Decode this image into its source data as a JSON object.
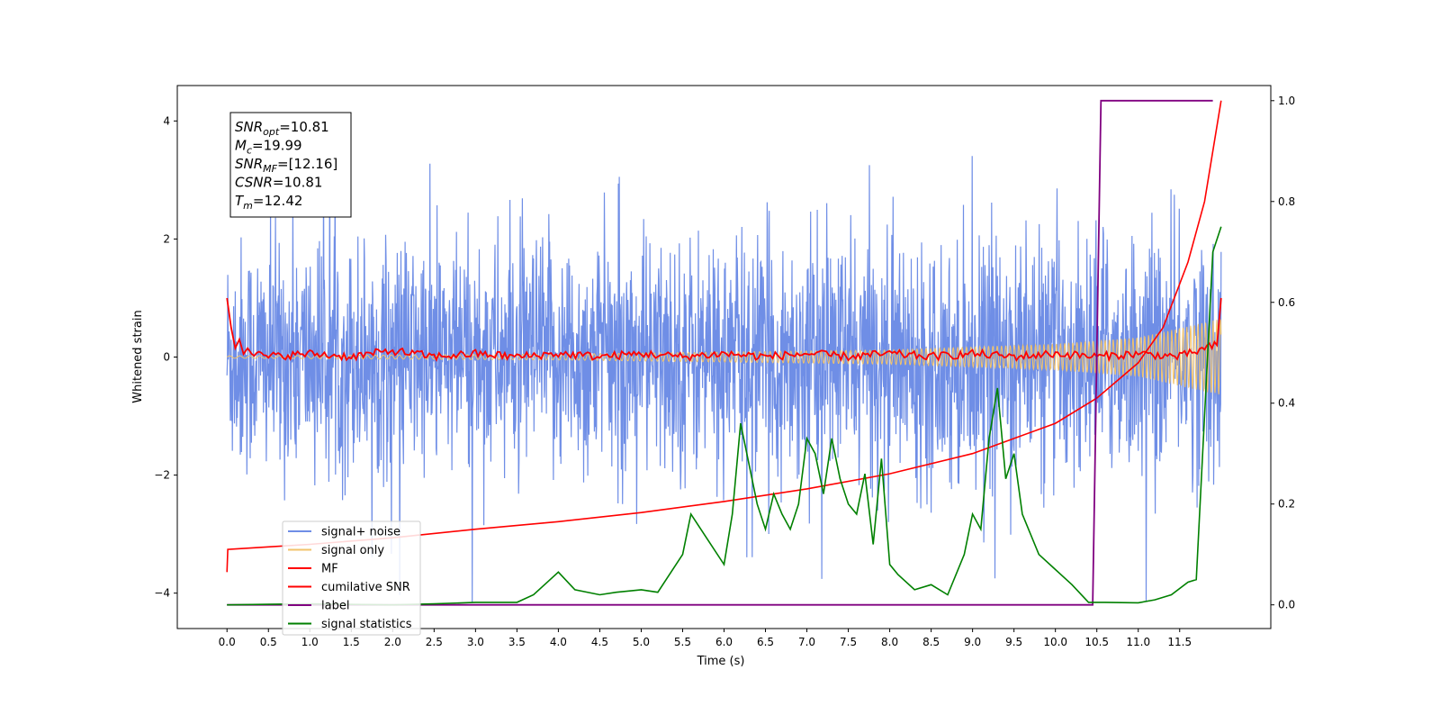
{
  "chart_data": {
    "type": "line",
    "xlabel": "Time (s)",
    "ylabel": "Whitened strain",
    "x_range": [
      -0.6,
      12.6
    ],
    "y_range": [
      -4.6,
      4.6
    ],
    "y2_range": [
      -0.047,
      1.03
    ],
    "x_ticks": [
      "0.0",
      "0.5",
      "1.0",
      "1.5",
      "2.0",
      "2.5",
      "3.0",
      "3.5",
      "4.0",
      "4.5",
      "5.0",
      "5.5",
      "6.0",
      "6.5",
      "7.0",
      "7.5",
      "8.0",
      "8.5",
      "9.0",
      "9.5",
      "10.0",
      "10.5",
      "11.0",
      "11.5"
    ],
    "y_ticks": [
      -4,
      -2,
      0,
      2,
      4
    ],
    "y2_ticks": [
      "0.0",
      "0.2",
      "0.4",
      "0.6",
      "0.8",
      "1.0"
    ],
    "legend_position": "lower-left",
    "colors": {
      "signal_noise": "#6f8ee6",
      "signal_only": "#f2c36b",
      "mf": "#ff0000",
      "cumulative_snr": "#ff0000",
      "label": "#800080",
      "signal_statistics": "#008000"
    },
    "annotation": [
      {
        "sym": "SNR",
        "sub": "opt",
        "val": "=10.81"
      },
      {
        "sym": "M",
        "sub": "c",
        "val": "=19.99"
      },
      {
        "sym": "SNR",
        "sub": "MF",
        "val": "=[12.16]"
      },
      {
        "sym": "CSNR",
        "sub": "",
        "val": "=10.81"
      },
      {
        "sym": "T",
        "sub": "m",
        "val": "=12.42"
      }
    ],
    "series": [
      {
        "name": "signal+ noise",
        "axis": "left",
        "description": "whitened noise, amplitude roughly ±2.5 with spikes to ±4",
        "x": [
          0.0,
          12.0
        ],
        "amplitude": 1.0
      },
      {
        "name": "signal only",
        "axis": "left",
        "envelope": [
          [
            0.0,
            0.02
          ],
          [
            4.0,
            0.05
          ],
          [
            8.0,
            0.12
          ],
          [
            10.0,
            0.22
          ],
          [
            11.0,
            0.33
          ],
          [
            12.0,
            0.65
          ]
        ]
      },
      {
        "name": "MF",
        "axis": "left",
        "x": [
          0.0,
          0.05,
          0.1,
          0.15,
          0.2,
          0.25,
          0.3,
          0.5,
          1.0,
          1.5,
          2.0,
          2.5,
          3.0,
          3.5,
          4.0,
          4.5,
          5.0,
          5.5,
          6.0,
          6.5,
          7.0,
          7.5,
          8.0,
          8.5,
          9.0,
          9.5,
          10.0,
          10.5,
          11.0,
          11.5,
          11.95,
          12.0
        ],
        "values": [
          1.0,
          0.5,
          0.15,
          0.3,
          0.05,
          0.15,
          0.05,
          0.0,
          0.05,
          0.0,
          0.1,
          0.0,
          0.05,
          0.0,
          0.05,
          0.0,
          0.05,
          0.0,
          0.05,
          0.0,
          0.05,
          0.0,
          0.05,
          0.0,
          0.05,
          0.0,
          0.05,
          0.0,
          0.05,
          0.0,
          0.2,
          1.0
        ]
      },
      {
        "name": "cumilative SNR",
        "axis": "right",
        "x": [
          0.0,
          0.01,
          0.5,
          1.0,
          2.0,
          3.0,
          4.0,
          5.0,
          6.0,
          7.0,
          8.0,
          9.0,
          9.5,
          10.0,
          10.5,
          11.0,
          11.3,
          11.6,
          11.8,
          12.0
        ],
        "values": [
          0.065,
          0.11,
          0.115,
          0.12,
          0.133,
          0.15,
          0.165,
          0.183,
          0.205,
          0.23,
          0.26,
          0.3,
          0.33,
          0.36,
          0.41,
          0.48,
          0.55,
          0.68,
          0.8,
          1.0
        ]
      },
      {
        "name": "label",
        "axis": "right",
        "x": [
          0.0,
          10.45,
          10.55,
          11.9
        ],
        "values": [
          0.0,
          0.0,
          1.0,
          1.0
        ]
      },
      {
        "name": "signal statistics",
        "axis": "right",
        "x": [
          0.0,
          0.5,
          1.0,
          2.0,
          2.5,
          3.0,
          3.5,
          3.7,
          3.9,
          4.0,
          4.2,
          4.5,
          4.7,
          5.0,
          5.2,
          5.5,
          5.6,
          5.8,
          6.0,
          6.1,
          6.2,
          6.3,
          6.4,
          6.5,
          6.6,
          6.7,
          6.8,
          6.9,
          7.0,
          7.1,
          7.2,
          7.3,
          7.4,
          7.5,
          7.6,
          7.7,
          7.8,
          7.9,
          8.0,
          8.1,
          8.3,
          8.5,
          8.7,
          8.9,
          9.0,
          9.1,
          9.2,
          9.3,
          9.4,
          9.5,
          9.6,
          9.8,
          10.0,
          10.2,
          10.4,
          10.6,
          11.0,
          11.2,
          11.4,
          11.6,
          11.7,
          11.9,
          12.0
        ],
        "values": [
          0.0,
          0.001,
          0.002,
          0.0,
          0.002,
          0.005,
          0.005,
          0.02,
          0.05,
          0.065,
          0.03,
          0.02,
          0.025,
          0.03,
          0.025,
          0.1,
          0.18,
          0.13,
          0.08,
          0.18,
          0.36,
          0.28,
          0.2,
          0.15,
          0.22,
          0.18,
          0.15,
          0.2,
          0.33,
          0.3,
          0.22,
          0.33,
          0.25,
          0.2,
          0.18,
          0.26,
          0.12,
          0.29,
          0.08,
          0.06,
          0.03,
          0.04,
          0.02,
          0.1,
          0.18,
          0.15,
          0.33,
          0.43,
          0.25,
          0.3,
          0.18,
          0.1,
          0.07,
          0.04,
          0.005,
          0.005,
          0.004,
          0.01,
          0.02,
          0.045,
          0.05,
          0.7,
          0.75
        ]
      }
    ]
  }
}
